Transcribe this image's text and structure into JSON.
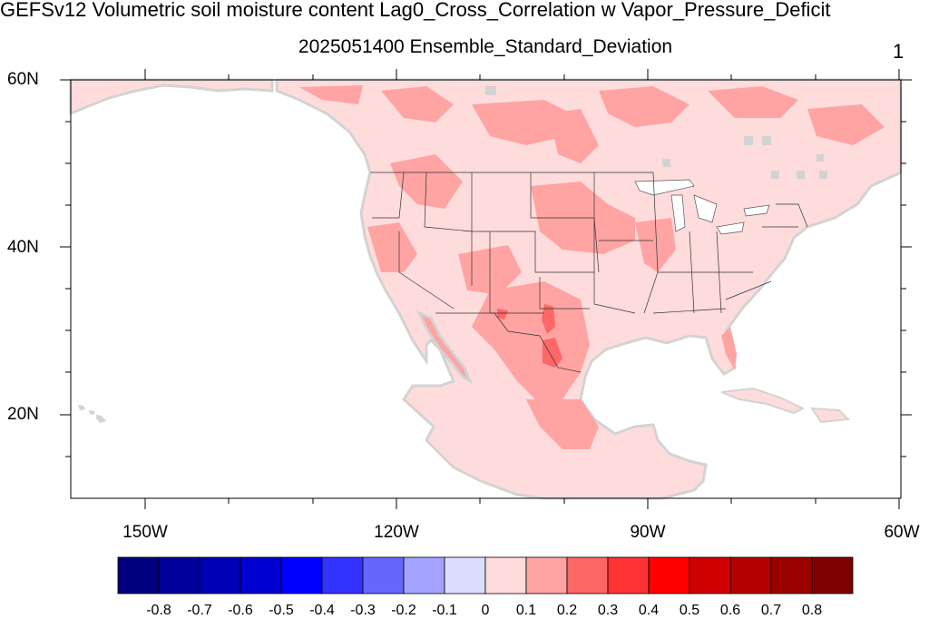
{
  "title": "GEFSv12 Volumetric soil moisture content Lag0_Cross_Correlation w Vapor_Pressure_Deficit",
  "subtitle": "2025051400 Ensemble_Standard_Deviation",
  "panel_number": "1",
  "lat_labels": [
    "60N",
    "40N",
    "20N"
  ],
  "lon_labels": [
    "150W",
    "120W",
    "90W",
    "60W"
  ],
  "colorbar": {
    "colors": [
      "#00007f",
      "#00009a",
      "#0000b5",
      "#0000d0",
      "#0000ff",
      "#3333ff",
      "#6666ff",
      "#a3a3ff",
      "#dcdcff",
      "#ffdcdc",
      "#ffa3a3",
      "#ff6666",
      "#ff3333",
      "#ff0000",
      "#d00000",
      "#b50000",
      "#9a0000",
      "#7f0000"
    ],
    "labels": [
      "-0.8",
      "-0.7",
      "-0.6",
      "-0.5",
      "-0.4",
      "-0.3",
      "-0.2",
      "-0.1",
      "0",
      "0.1",
      "0.2",
      "0.3",
      "0.4",
      "0.5",
      "0.6",
      "0.7",
      "0.8"
    ]
  },
  "map_colors": {
    "land_base": "#ffdcdc",
    "land_mid": "#ffa3a3",
    "land_high": "#ff6666",
    "missing": "#d3d3d3",
    "ocean": "#ffffff"
  }
}
